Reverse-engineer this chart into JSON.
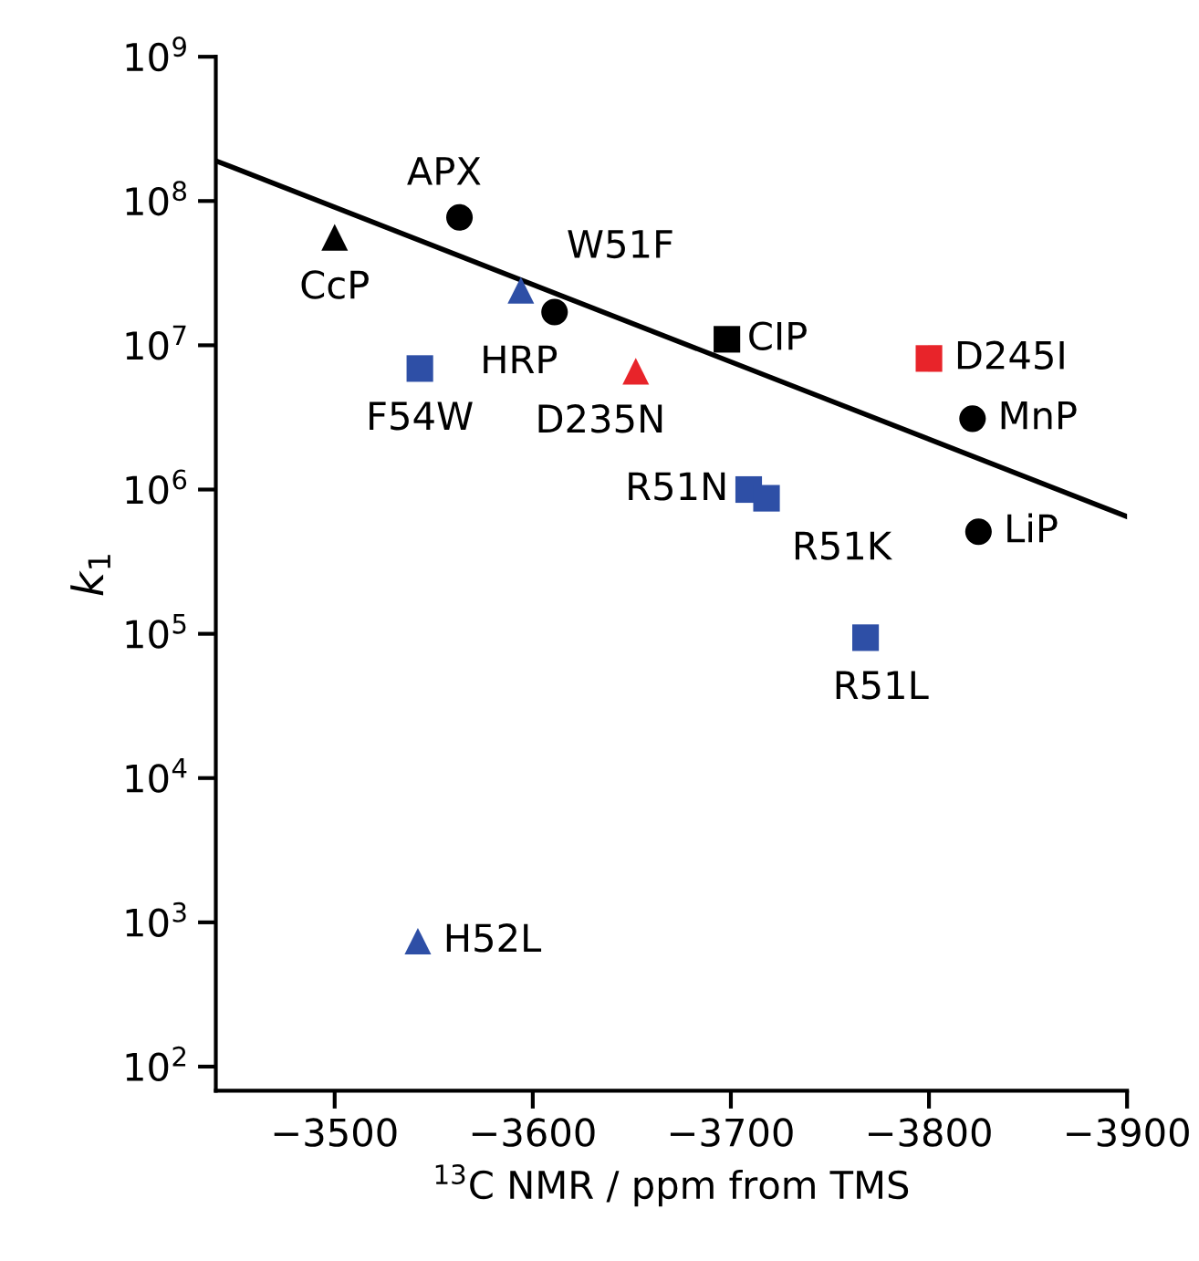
{
  "chart_data": {
    "type": "scatter",
    "xlabel": "$^{13}$C NMR / ppm from TMS",
    "ylabel": "k$_{1}$",
    "log": "y",
    "xlim": [
      -3440,
      -3900
    ],
    "ylim": [
      68,
      1000000000
    ],
    "xticks": [
      {
        "value": -3500,
        "label": "−3500"
      },
      {
        "value": -3600,
        "label": "−3600"
      },
      {
        "value": -3700,
        "label": "−3700"
      },
      {
        "value": -3800,
        "label": "−3800"
      },
      {
        "value": -3900,
        "label": "−3900"
      }
    ],
    "yticks": [
      {
        "value": 100,
        "label": "10$^{2}$"
      },
      {
        "value": 1000,
        "label": "10$^{3}$"
      },
      {
        "value": 10000,
        "label": "10$^{4}$"
      },
      {
        "value": 100000,
        "label": "10$^{5}$"
      },
      {
        "value": 1000000,
        "label": "10$^{6}$"
      },
      {
        "value": 10000000,
        "label": "10$^{7}$"
      },
      {
        "value": 100000000,
        "label": "10$^{8}$"
      },
      {
        "value": 1000000000,
        "label": "10$^{9}$"
      }
    ],
    "grid": false,
    "legend": false,
    "series": [
      {
        "type": "line",
        "color": "#000000",
        "x": [
          -3440,
          -3900
        ],
        "values": [
          190000000,
          650000
        ]
      },
      {
        "color": "#000000",
        "marker": "circle",
        "x": [
          -3563,
          -3611,
          -3822,
          -3825
        ],
        "values": [
          77000000,
          17000000,
          3100000,
          510000
        ]
      },
      {
        "color": "#000000",
        "marker": "triangle",
        "x": [
          -3500
        ],
        "values": [
          56000000
        ]
      },
      {
        "color": "#000000",
        "marker": "square",
        "x": [
          -3698
        ],
        "values": [
          11000000
        ]
      },
      {
        "color": "#2e4fa6",
        "marker": "square",
        "x": [
          -3543,
          -3709,
          -3718,
          -3768
        ],
        "values": [
          6900000,
          1000000,
          870000,
          94000
        ]
      },
      {
        "color": "#2e4fa6",
        "marker": "triangle",
        "x": [
          -3594,
          -3542
        ],
        "values": [
          24000000,
          740
        ]
      },
      {
        "color": "#e8242a",
        "marker": "triangle",
        "x": [
          -3652
        ],
        "values": [
          6600000
        ]
      },
      {
        "color": "#e8242a",
        "marker": "square",
        "x": [
          -3800
        ],
        "values": [
          8100000
        ]
      }
    ],
    "annotations": [
      {
        "text": "CcP",
        "x": -3500,
        "y": 56000000
      },
      {
        "text": "APX",
        "x": -3563,
        "y": 77000000
      },
      {
        "text": "W51F",
        "x": -3594,
        "y": 24000000
      },
      {
        "text": "HRP",
        "x": -3611,
        "y": 17000000
      },
      {
        "text": "D235N",
        "x": -3652,
        "y": 6600000
      },
      {
        "text": "F54W",
        "x": -3543,
        "y": 6900000
      },
      {
        "text": "CIP",
        "x": -3698,
        "y": 11000000
      },
      {
        "text": "D245I",
        "x": -3800,
        "y": 8100000
      },
      {
        "text": "MnP",
        "x": -3822,
        "y": 3100000
      },
      {
        "text": "R51N",
        "x": -3709,
        "y": 1000000
      },
      {
        "text": "R51K",
        "x": -3718,
        "y": 870000
      },
      {
        "text": "LiP",
        "x": -3825,
        "y": 510000
      },
      {
        "text": "R51L",
        "x": -3768,
        "y": 94000
      },
      {
        "text": "H52L",
        "x": -3542,
        "y": 740
      }
    ]
  }
}
